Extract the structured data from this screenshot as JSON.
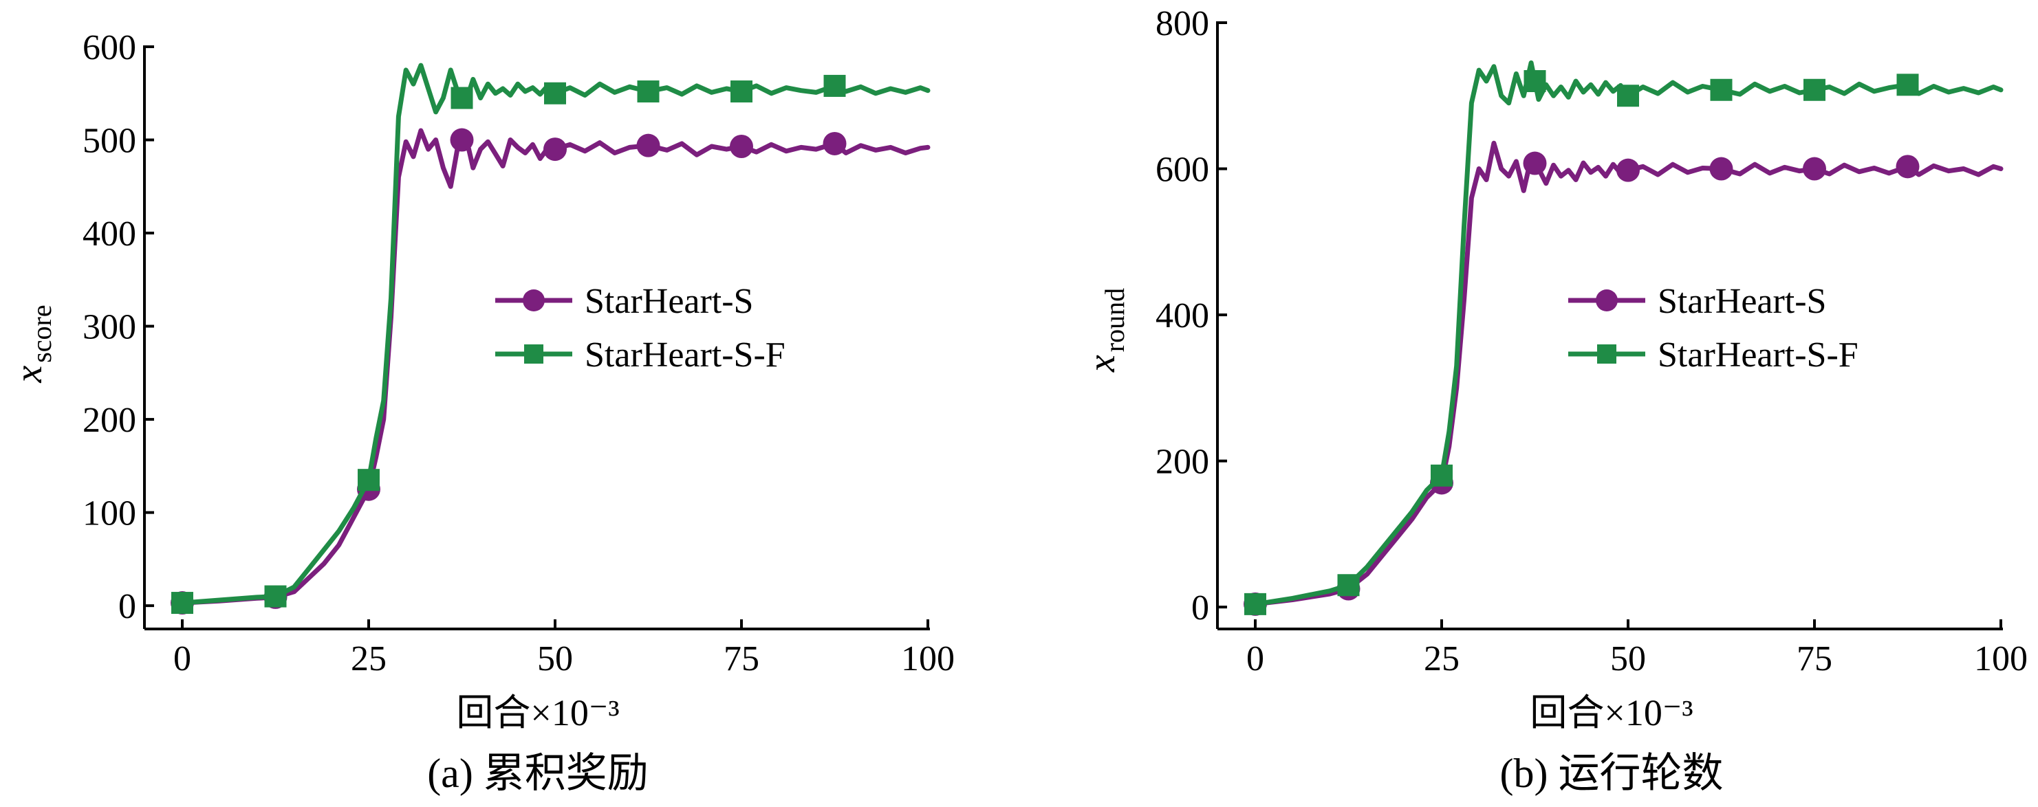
{
  "colors": {
    "starheart_s": "#7b1f7d",
    "starheart_s_f": "#1f8c46"
  },
  "chart_data": [
    {
      "type": "line",
      "caption": "(a) 累积奖励",
      "xlabel": "回合×10⁻³",
      "ylabel_main": "x",
      "ylabel_sub": "score",
      "xlim": [
        0,
        100
      ],
      "ylim": [
        -25,
        600
      ],
      "x_ticks": [
        0,
        25,
        50,
        75,
        100
      ],
      "y_ticks": [
        0,
        100,
        200,
        300,
        400,
        500,
        600
      ],
      "legend_position": "center-right",
      "x": [
        0,
        5,
        10,
        12.5,
        15,
        17,
        19,
        21,
        23,
        25,
        26,
        27,
        28,
        29,
        30,
        31,
        32,
        33,
        34,
        35,
        36,
        37,
        38,
        39,
        40,
        41,
        42,
        43,
        44,
        45,
        46,
        47,
        48,
        49,
        50,
        52,
        54,
        56,
        58,
        60,
        62.5,
        65,
        67,
        69,
        71,
        73,
        75,
        77,
        79,
        81,
        83,
        85,
        87.5,
        89,
        91,
        93,
        95,
        97,
        99,
        100
      ],
      "series": [
        {
          "name": "StarHeart-S",
          "marker": "circle",
          "marker_x": [
            0,
            12.5,
            25,
            37.5,
            50,
            62.5,
            75,
            87.5
          ],
          "values": [
            3,
            5,
            8,
            9,
            15,
            30,
            45,
            65,
            95,
            125,
            160,
            200,
            310,
            460,
            498,
            482,
            510,
            490,
            500,
            470,
            450,
            495,
            505,
            470,
            490,
            498,
            485,
            472,
            500,
            492,
            486,
            495,
            480,
            491,
            490,
            495,
            488,
            497,
            486,
            492,
            494,
            489,
            496,
            484,
            493,
            490,
            493,
            487,
            495,
            488,
            492,
            490,
            496,
            486,
            494,
            489,
            492,
            486,
            491,
            492
          ]
        },
        {
          "name": "StarHeart-S-F",
          "marker": "square",
          "marker_x": [
            0,
            12.5,
            25,
            37.5,
            50,
            62.5,
            75,
            87.5
          ],
          "values": [
            3,
            6,
            9,
            10,
            20,
            40,
            60,
            80,
            105,
            135,
            180,
            220,
            330,
            525,
            575,
            560,
            580,
            555,
            530,
            545,
            575,
            550,
            540,
            565,
            545,
            560,
            550,
            555,
            548,
            560,
            552,
            556,
            549,
            558,
            550,
            556,
            548,
            560,
            551,
            557,
            552,
            556,
            549,
            558,
            551,
            555,
            552,
            558,
            550,
            556,
            553,
            551,
            558,
            552,
            557,
            550,
            555,
            551,
            556,
            553
          ]
        }
      ]
    },
    {
      "type": "line",
      "caption": "(b) 运行轮数",
      "xlabel": "回合×10⁻³",
      "ylabel_main": "x",
      "ylabel_sub": "round",
      "xlim": [
        0,
        100
      ],
      "ylim": [
        -30,
        800
      ],
      "x_ticks": [
        0,
        25,
        50,
        75,
        100
      ],
      "y_ticks": [
        0,
        200,
        400,
        600,
        800
      ],
      "legend_position": "center-right",
      "x": [
        0,
        5,
        10,
        12.5,
        15,
        17,
        19,
        21,
        23,
        25,
        26,
        27,
        28,
        29,
        30,
        31,
        32,
        33,
        34,
        35,
        36,
        37,
        38,
        39,
        40,
        41,
        42,
        43,
        44,
        45,
        46,
        47,
        48,
        49,
        50,
        52,
        54,
        56,
        58,
        60,
        62.5,
        65,
        67,
        69,
        71,
        73,
        75,
        77,
        79,
        81,
        83,
        85,
        87.5,
        89,
        91,
        93,
        95,
        97,
        99,
        100
      ],
      "series": [
        {
          "name": "StarHeart-S",
          "marker": "circle",
          "marker_x": [
            0,
            12.5,
            25,
            37.5,
            50,
            62.5,
            75,
            87.5
          ],
          "values": [
            4,
            10,
            18,
            25,
            45,
            70,
            95,
            120,
            150,
            170,
            220,
            300,
            420,
            560,
            600,
            585,
            635,
            600,
            590,
            610,
            570,
            615,
            600,
            580,
            605,
            590,
            598,
            585,
            608,
            595,
            602,
            590,
            606,
            594,
            598,
            603,
            592,
            606,
            595,
            601,
            600,
            593,
            606,
            594,
            602,
            597,
            600,
            593,
            605,
            596,
            601,
            594,
            603,
            592,
            604,
            597,
            600,
            592,
            603,
            600
          ]
        },
        {
          "name": "StarHeart-S-F",
          "marker": "square",
          "marker_x": [
            0,
            12.5,
            25,
            37.5,
            50,
            62.5,
            75,
            87.5
          ],
          "values": [
            4,
            12,
            22,
            30,
            55,
            80,
            105,
            130,
            160,
            180,
            240,
            330,
            520,
            690,
            735,
            720,
            740,
            700,
            690,
            730,
            700,
            745,
            695,
            715,
            700,
            712,
            698,
            720,
            705,
            715,
            702,
            718,
            706,
            714,
            700,
            712,
            703,
            718,
            705,
            713,
            708,
            702,
            716,
            706,
            713,
            704,
            708,
            712,
            703,
            716,
            706,
            711,
            715,
            703,
            713,
            705,
            710,
            704,
            712,
            708
          ]
        }
      ]
    }
  ]
}
